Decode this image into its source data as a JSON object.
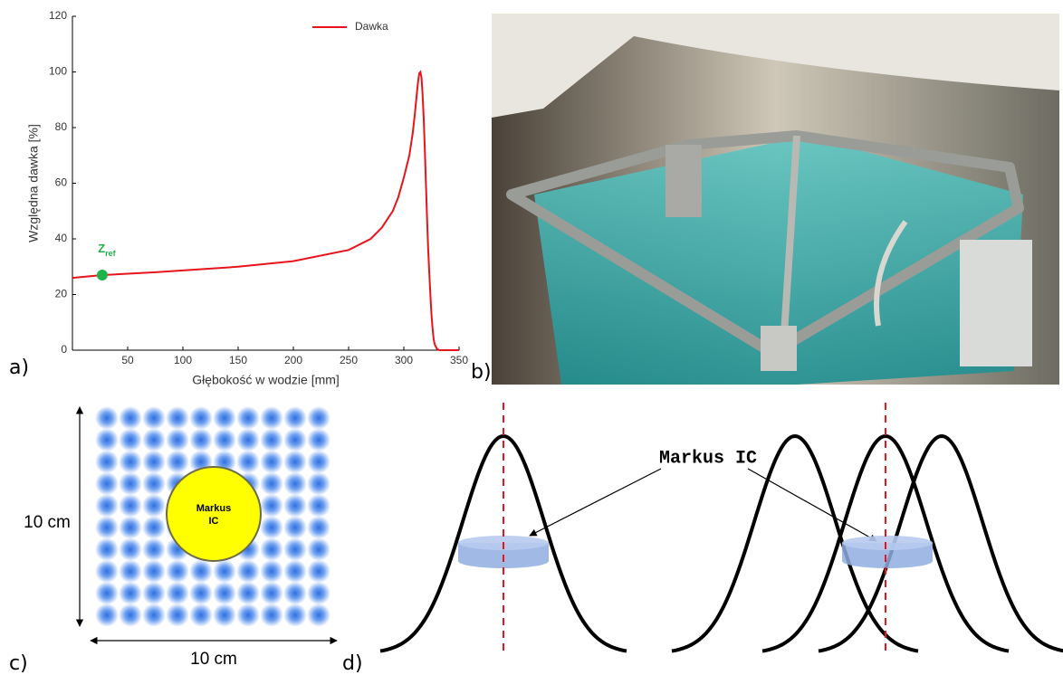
{
  "chart_data": {
    "type": "line",
    "x_label": "Głębokość w wodzie [mm]",
    "y_label": "Względna dawka [%]",
    "x": [
      0,
      27,
      75,
      150,
      200,
      250,
      270,
      280,
      290,
      295,
      300,
      305,
      308,
      310,
      312,
      313,
      314,
      315,
      316,
      317,
      318,
      319,
      320,
      321,
      322,
      323,
      324,
      325,
      326,
      327,
      328,
      330,
      332,
      340,
      350
    ],
    "series": [
      {
        "name": "Dawka",
        "color": "#e8141b",
        "values": [
          26,
          27,
          28,
          30,
          32,
          36,
          40,
          44,
          50,
          55,
          62,
          70,
          78,
          85,
          93,
          97,
          99.5,
          100,
          98,
          92,
          83,
          72,
          60,
          48,
          37,
          28,
          20,
          13,
          8,
          4,
          2,
          0.5,
          0,
          0,
          0
        ]
      }
    ],
    "xlim": [
      0,
      350
    ],
    "xticks": [
      50,
      100,
      150,
      200,
      250,
      300,
      350
    ],
    "ylim": [
      0,
      120
    ],
    "yticks": [
      0,
      20,
      40,
      60,
      80,
      100,
      120
    ],
    "legend": "upper right",
    "annotations": [
      {
        "text": "Z",
        "subscript": "ref",
        "x": 27,
        "y": 27,
        "color": "#1db34a"
      }
    ]
  },
  "panel_labels": [
    "a)",
    "b)",
    "c)",
    "d)"
  ],
  "grid_diagram": {
    "detector": [
      "Markus",
      "IC"
    ],
    "height_label": "10 cm",
    "width_label": "10 cm"
  },
  "profile_diagram": {
    "detector": "Markus IC"
  }
}
